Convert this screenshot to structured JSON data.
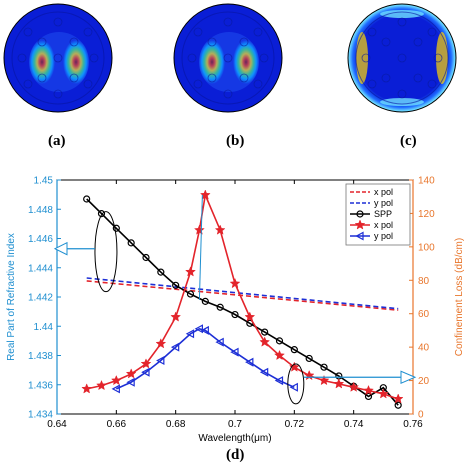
{
  "panels": [
    {
      "label": "(a)",
      "pattern": "two-lobes-center",
      "colormap": "jet"
    },
    {
      "label": "(b)",
      "pattern": "two-lobes-center",
      "colormap": "jet"
    },
    {
      "label": "(c)",
      "pattern": "ring-edge",
      "colormap": "jet"
    }
  ],
  "chart_data": {
    "type": "line",
    "panel_label": "(d)",
    "xlabel": "Wavelength(μm)",
    "ylabel_left": "Real Part of Refractive Index",
    "ylabel_right": "Confinement Loss (dB/cm)",
    "xlim": [
      0.64,
      0.76
    ],
    "ylim_left": [
      1.434,
      1.45
    ],
    "ylim_right": [
      0,
      140
    ],
    "x_ticks": [
      "0.64",
      "0.66",
      "0.68",
      "0.7",
      "0.72",
      "0.74",
      "0.76"
    ],
    "y_left_ticks": [
      "1.434",
      "1.436",
      "1.438",
      "1.44",
      "1.442",
      "1.444",
      "1.446",
      "1.448",
      "1.45"
    ],
    "y_right_ticks": [
      "0",
      "20",
      "40",
      "60",
      "80",
      "100",
      "120",
      "140"
    ],
    "colors": {
      "left_axis": "#1f8fd0",
      "right_axis": "#e8762c",
      "red": "#e3242b",
      "blue": "#1d2fd6",
      "black": "#000000"
    },
    "legend_position": "top-right",
    "series": [
      {
        "name": "x pol",
        "axis": "left",
        "color": "#e3242b",
        "style": "dashed",
        "x": [
          0.65,
          0.755
        ],
        "y": [
          1.4431,
          1.4411
        ]
      },
      {
        "name": "y pol",
        "axis": "left",
        "color": "#1d2fd6",
        "style": "dashed",
        "x": [
          0.65,
          0.755
        ],
        "y": [
          1.4433,
          1.4412
        ]
      },
      {
        "name": "SPP",
        "axis": "left",
        "color": "#000000",
        "style": "solid",
        "marker": "circle",
        "x": [
          0.65,
          0.655,
          0.66,
          0.665,
          0.67,
          0.675,
          0.68,
          0.685,
          0.69,
          0.695,
          0.7,
          0.705,
          0.71,
          0.715,
          0.72,
          0.725,
          0.73,
          0.735,
          0.74,
          0.745,
          0.75,
          0.755
        ],
        "y": [
          1.4487,
          1.4477,
          1.4467,
          1.4457,
          1.4447,
          1.4437,
          1.4428,
          1.4422,
          1.4417,
          1.4413,
          1.4408,
          1.4402,
          1.4396,
          1.439,
          1.4384,
          1.4378,
          1.4372,
          1.4366,
          1.4359,
          1.4352,
          1.4358,
          1.4346
        ]
      },
      {
        "name": "x pol",
        "axis": "right",
        "color": "#e3242b",
        "style": "solid",
        "marker": "star",
        "x": [
          0.65,
          0.655,
          0.66,
          0.665,
          0.67,
          0.675,
          0.68,
          0.685,
          0.688,
          0.69,
          0.695,
          0.7,
          0.705,
          0.71,
          0.715,
          0.72,
          0.725,
          0.73,
          0.735,
          0.74,
          0.745,
          0.75,
          0.755
        ],
        "y": [
          15,
          17,
          20,
          24,
          30,
          42,
          58,
          85,
          110,
          131,
          110,
          78,
          58,
          43,
          35,
          28,
          23,
          20,
          18,
          16,
          14,
          12,
          9
        ]
      },
      {
        "name": "y pol",
        "axis": "right",
        "color": "#1d2fd6",
        "style": "solid",
        "marker": "triangle",
        "x": [
          0.66,
          0.665,
          0.67,
          0.675,
          0.68,
          0.685,
          0.688,
          0.69,
          0.695,
          0.7,
          0.705,
          0.71,
          0.715,
          0.72
        ],
        "y": [
          15,
          19,
          25,
          32,
          40,
          48,
          51,
          50,
          43,
          37,
          31,
          25,
          20,
          16
        ]
      }
    ],
    "annotations": [
      {
        "type": "ellipse-arrow",
        "target": "left-axis",
        "axis": "left"
      },
      {
        "type": "ellipse-arrow",
        "target": "right-axis",
        "axis": "right"
      }
    ]
  }
}
